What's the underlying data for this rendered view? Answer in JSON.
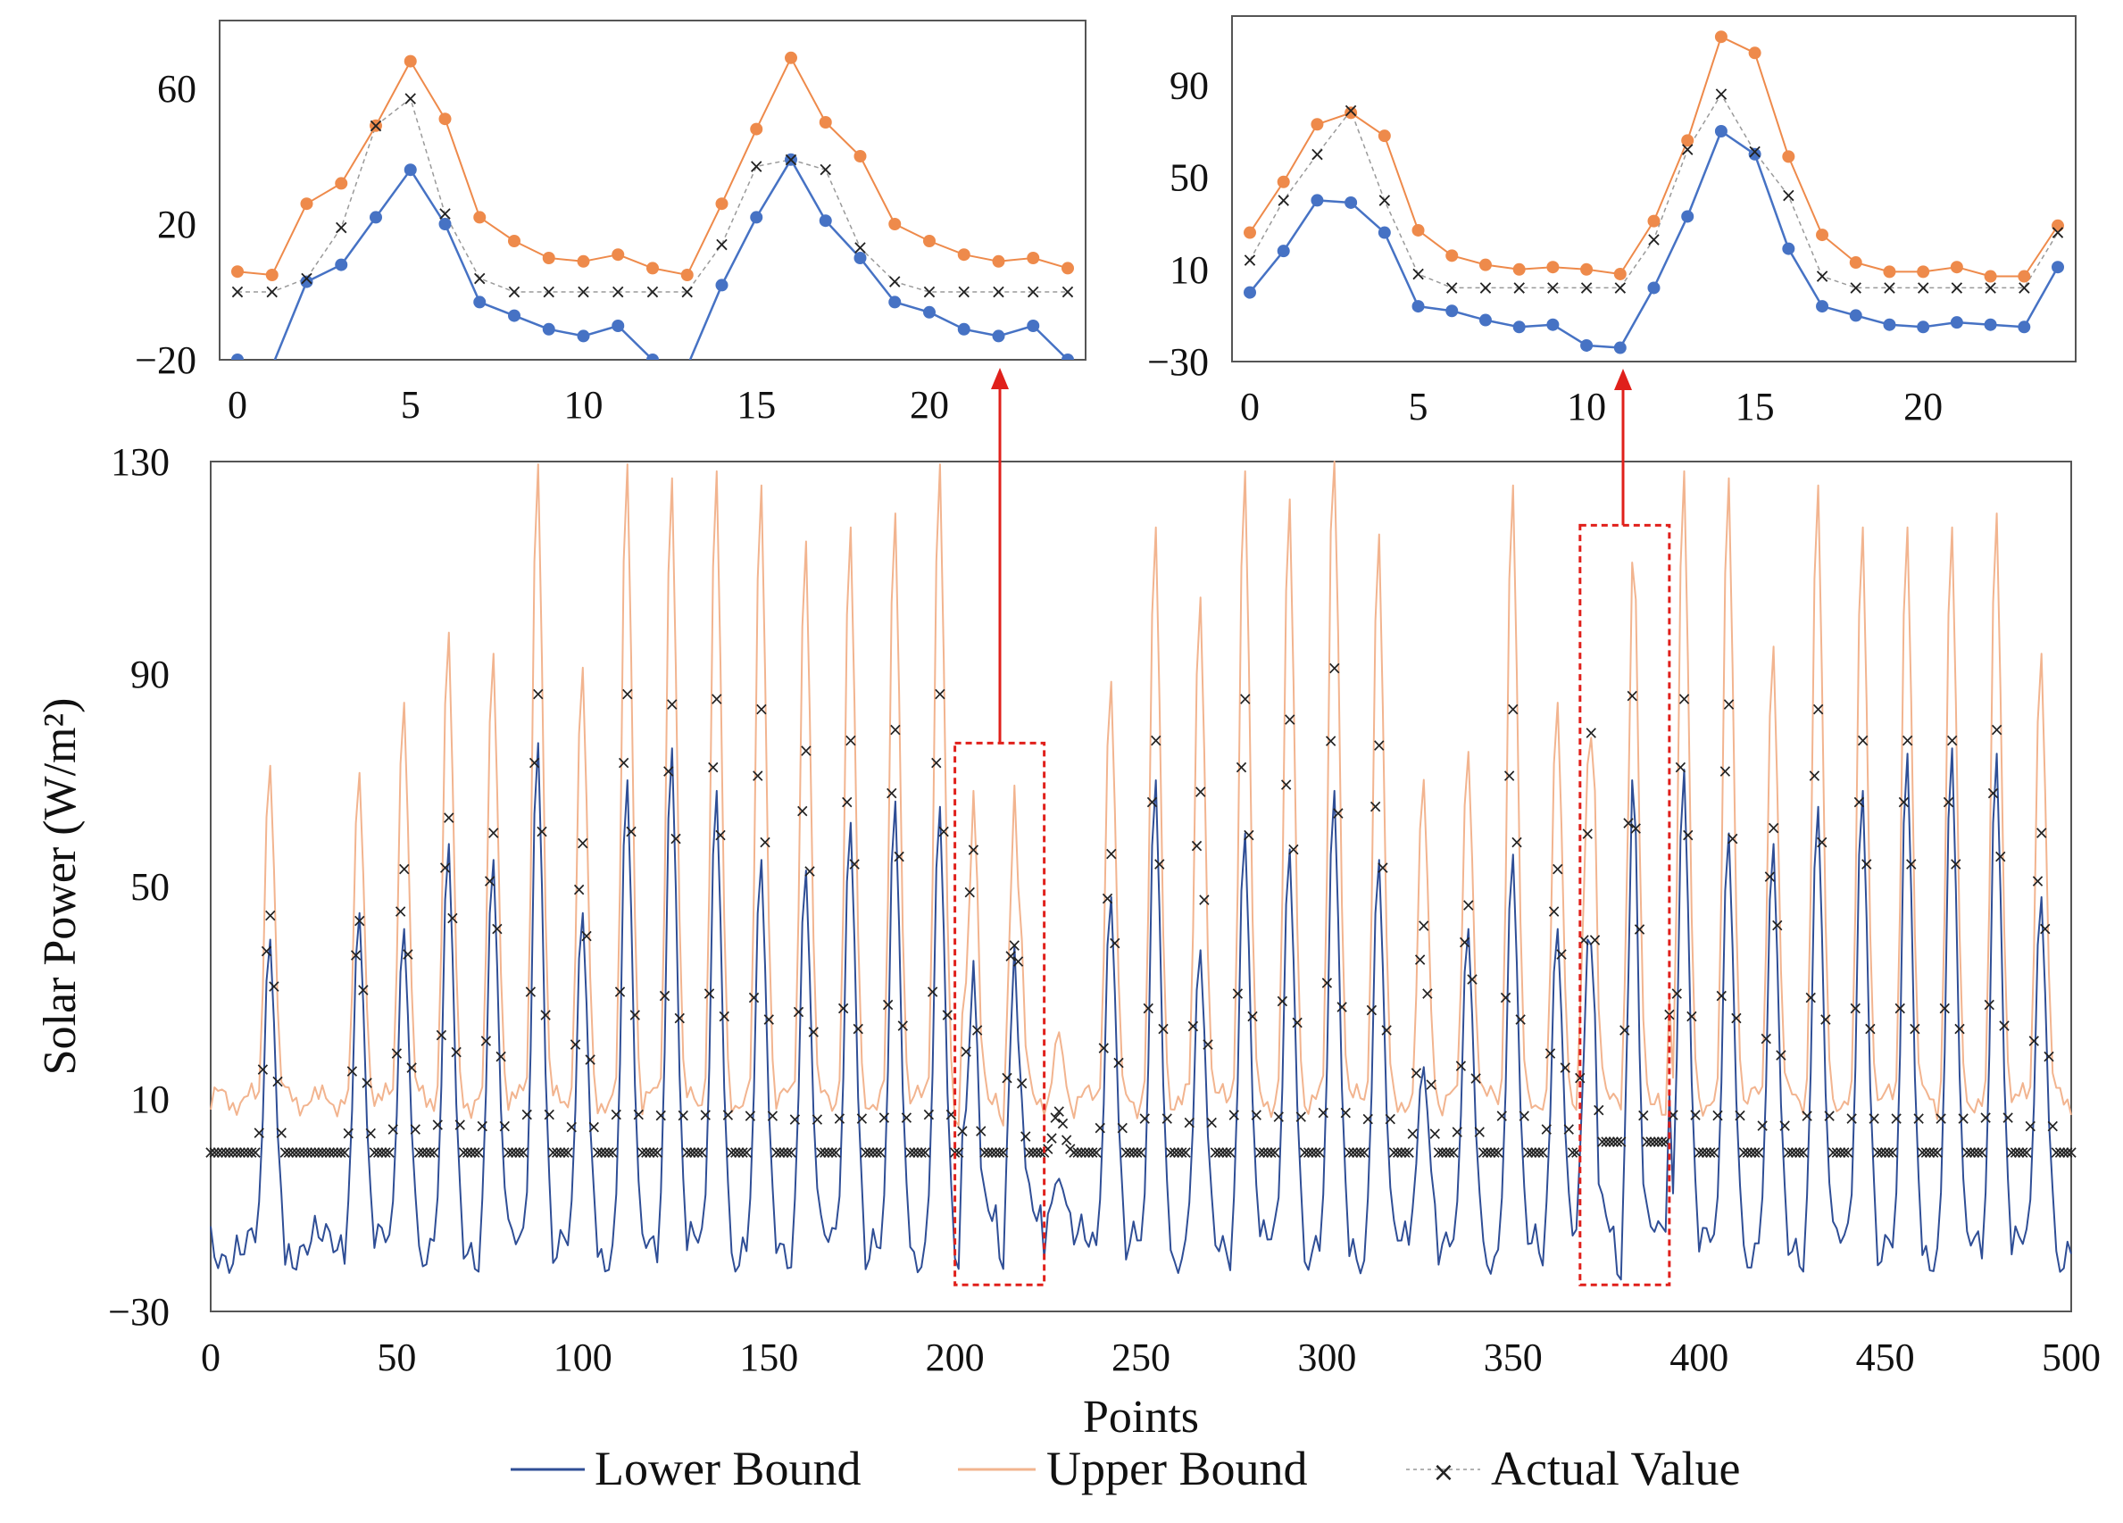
{
  "colors": {
    "lower": "#2f4e96",
    "upper": "#f2b48f",
    "upper_inset": "#ee8a4b",
    "lower_inset": "#4672c4",
    "actual": "#222222",
    "callout": "#e0201b"
  },
  "chart_data": [
    {
      "id": "main",
      "type": "line",
      "xlabel": "Points",
      "ylabel": "Solar Power (W/m²)",
      "xlim": [
        0,
        500
      ],
      "ylim": [
        -30,
        130
      ],
      "xticks": [
        0,
        50,
        100,
        150,
        200,
        250,
        300,
        350,
        400,
        450,
        500
      ],
      "yticks": [
        -30,
        10,
        50,
        90,
        130
      ],
      "series": [
        {
          "name": "Lower Bound",
          "key": "lower"
        },
        {
          "name": "Upper Bound",
          "key": "upper"
        },
        {
          "name": "Actual Value",
          "key": "actual"
        }
      ],
      "day_peaks": [
        {
          "start": 13,
          "lower": 40,
          "actual": 46
        },
        {
          "start": 37,
          "lower": 45,
          "actual": 45
        },
        {
          "start": 49,
          "lower": 42,
          "actual": 55
        },
        {
          "start": 61,
          "lower": 58,
          "actual": 65
        },
        {
          "start": 73,
          "lower": 55,
          "actual": 62
        },
        {
          "start": 85,
          "lower": 77,
          "actual": 89
        },
        {
          "start": 97,
          "lower": 45,
          "actual": 60
        },
        {
          "start": 109,
          "lower": 70,
          "actual": 89
        },
        {
          "start": 121,
          "lower": 76,
          "actual": 87
        },
        {
          "start": 133,
          "lower": 68,
          "actual": 88
        },
        {
          "start": 145,
          "lower": 55,
          "actual": 86
        },
        {
          "start": 157,
          "lower": 53,
          "actual": 78
        },
        {
          "start": 169,
          "lower": 62,
          "actual": 80
        },
        {
          "start": 181,
          "lower": 66,
          "actual": 82
        },
        {
          "start": 193,
          "lower": 65,
          "actual": 89
        },
        {
          "start": 200,
          "inset": true
        },
        {
          "start": 225,
          "lower": -5,
          "actual": 8
        },
        {
          "start": 239,
          "lower": 48,
          "actual": 58
        },
        {
          "start": 251,
          "lower": 70,
          "actual": 80
        },
        {
          "start": 263,
          "lower": 38,
          "actual": 70
        },
        {
          "start": 275,
          "lower": 60,
          "actual": 88
        },
        {
          "start": 287,
          "lower": 57,
          "actual": 84
        },
        {
          "start": 299,
          "lower": 68,
          "actual": 94
        },
        {
          "start": 311,
          "lower": 55,
          "actual": 79
        },
        {
          "start": 323,
          "lower": 16,
          "actual": 44
        },
        {
          "start": 335,
          "lower": 42,
          "actual": 48
        },
        {
          "start": 347,
          "lower": 56,
          "actual": 86
        },
        {
          "start": 359,
          "lower": 42,
          "actual": 55
        },
        {
          "start": 368,
          "inset": true
        },
        {
          "start": 393,
          "lower": 72,
          "actual": 88
        },
        {
          "start": 405,
          "lower": 60,
          "actual": 87
        },
        {
          "start": 417,
          "lower": 58,
          "actual": 63
        },
        {
          "start": 429,
          "lower": 65,
          "actual": 86
        },
        {
          "start": 441,
          "lower": 68,
          "actual": 80
        },
        {
          "start": 453,
          "lower": 75,
          "actual": 80
        },
        {
          "start": 465,
          "lower": 76,
          "actual": 80
        },
        {
          "start": 477,
          "lower": 75,
          "actual": 82
        },
        {
          "start": 489,
          "lower": 48,
          "actual": 62
        }
      ]
    },
    {
      "id": "inset_left",
      "type": "line",
      "xlim": [
        0,
        24
      ],
      "ylim": [
        -20,
        80
      ],
      "xticks": [
        0,
        5,
        10,
        15,
        20
      ],
      "yticks": [
        -20,
        20,
        60
      ],
      "x": [
        0,
        1,
        2,
        3,
        4,
        5,
        6,
        7,
        8,
        9,
        10,
        11,
        12,
        13,
        14,
        15,
        16,
        17,
        18,
        19,
        20,
        21,
        22,
        23,
        24
      ],
      "lower": [
        -20,
        -22,
        3,
        8,
        22,
        36,
        20,
        -3,
        -7,
        -11,
        -13,
        -10,
        -20,
        -22,
        2,
        22,
        39,
        21,
        10,
        -3,
        -6,
        -11,
        -13,
        -10,
        -20
      ],
      "upper": [
        6,
        5,
        26,
        32,
        49,
        68,
        51,
        22,
        15,
        10,
        9,
        11,
        7,
        5,
        26,
        48,
        69,
        50,
        40,
        20,
        15,
        11,
        9,
        10,
        7
      ],
      "actual": [
        0,
        0,
        4,
        19,
        49,
        57,
        23,
        4,
        0,
        0,
        0,
        0,
        0,
        0,
        14,
        37,
        39,
        36,
        13,
        3,
        0,
        0,
        0,
        0,
        0
      ]
    },
    {
      "id": "inset_right",
      "type": "line",
      "xlim": [
        0,
        24
      ],
      "ylim": [
        -30,
        120
      ],
      "xticks": [
        0,
        5,
        10,
        15,
        20
      ],
      "yticks": [
        -30,
        10,
        50,
        90
      ],
      "x": [
        0,
        1,
        2,
        3,
        4,
        5,
        6,
        7,
        8,
        9,
        10,
        11,
        12,
        13,
        14,
        15,
        16,
        17,
        18,
        19,
        20,
        21,
        22,
        23,
        24
      ],
      "lower": [
        0,
        18,
        40,
        39,
        26,
        -6,
        -8,
        -12,
        -15,
        -14,
        -23,
        -24,
        2,
        33,
        70,
        60,
        19,
        -6,
        -10,
        -14,
        -15,
        -13,
        -14,
        -15,
        11
      ],
      "upper": [
        26,
        48,
        73,
        78,
        68,
        27,
        16,
        12,
        10,
        11,
        10,
        8,
        31,
        66,
        111,
        104,
        59,
        25,
        13,
        9,
        9,
        11,
        7,
        7,
        29
      ],
      "actual": [
        14,
        40,
        60,
        79,
        40,
        8,
        2,
        2,
        2,
        2,
        2,
        2,
        23,
        62,
        86,
        61,
        42,
        7,
        2,
        2,
        2,
        2,
        2,
        2,
        26
      ]
    }
  ],
  "legend": {
    "lower": "Lower Bound",
    "upper": "Upper Bound",
    "actual": "Actual Value"
  }
}
